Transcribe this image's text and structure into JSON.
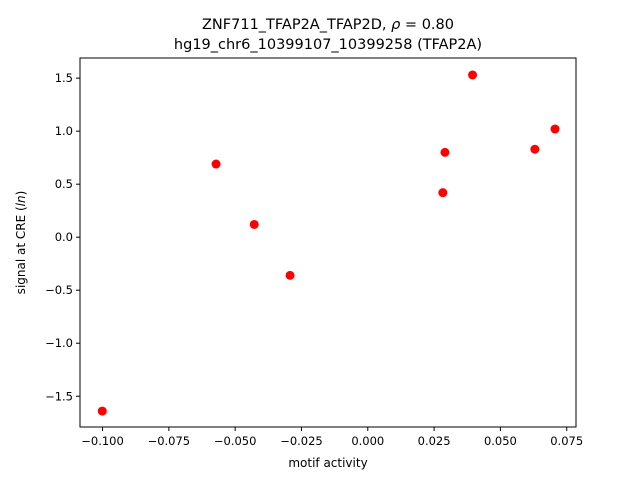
{
  "chart_data": {
    "type": "scatter",
    "title_line1_prefix": "ZNF711_TFAP2A_TFAP2D, ",
    "title_rho_symbol": "ρ",
    "title_rho_value": " = 0.80",
    "title_line2": "hg19_chr6_10399107_10399258 (TFAP2A)",
    "xlabel": "motif activity",
    "ylabel_prefix": "signal at CRE (",
    "ylabel_italic": "ln",
    "ylabel_suffix": ")",
    "xlim": [
      -0.1085,
      0.0785
    ],
    "ylim": [
      -1.79,
      1.69
    ],
    "x_ticks": [
      -0.1,
      -0.075,
      -0.05,
      -0.025,
      0.0,
      0.025,
      0.05,
      0.075
    ],
    "x_tick_labels": [
      "−0.100",
      "−0.075",
      "−0.050",
      "−0.025",
      "0.000",
      "0.025",
      "0.050",
      "0.075"
    ],
    "y_ticks": [
      -1.5,
      -1.0,
      -0.5,
      0.0,
      0.5,
      1.0,
      1.5
    ],
    "y_tick_labels": [
      "−1.5",
      "−1.0",
      "−0.5",
      "0.0",
      "0.5",
      "1.0",
      "1.5"
    ],
    "marker_color": "#ff0000",
    "points": [
      {
        "x": -0.1001,
        "y": -1.64
      },
      {
        "x": -0.0572,
        "y": 0.69
      },
      {
        "x": -0.0428,
        "y": 0.12
      },
      {
        "x": -0.0293,
        "y": -0.36
      },
      {
        "x": 0.0283,
        "y": 0.42
      },
      {
        "x": 0.0291,
        "y": 0.8
      },
      {
        "x": 0.0395,
        "y": 1.53
      },
      {
        "x": 0.063,
        "y": 0.83
      },
      {
        "x": 0.0706,
        "y": 1.02
      }
    ]
  }
}
